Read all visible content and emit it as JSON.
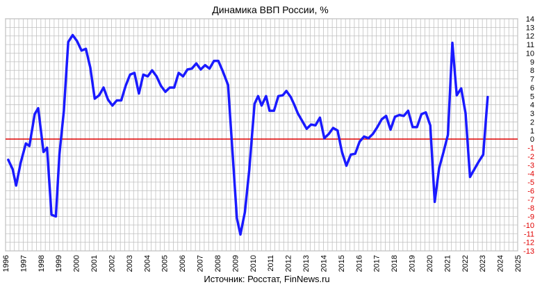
{
  "chart_data": {
    "type": "line",
    "title": "Динамика ВВП России, %",
    "source": "Источник: Росстат, FinNews.ru",
    "xlabel": "",
    "ylabel": "",
    "xlim": [
      1996,
      2025
    ],
    "ylim": [
      -13,
      14
    ],
    "x_ticks": [
      "1996",
      "1997",
      "1998",
      "1999",
      "2000",
      "2001",
      "2002",
      "2003",
      "2004",
      "2005",
      "2006",
      "2007",
      "2008",
      "2009",
      "2010",
      "2011",
      "2012",
      "2013",
      "2014",
      "2015",
      "2016",
      "2017",
      "2018",
      "2019",
      "2020",
      "2021",
      "2022",
      "2023",
      "2024",
      "2025"
    ],
    "y_ticks": [
      14,
      13,
      12,
      11,
      10,
      9,
      8,
      7,
      6,
      5,
      4,
      3,
      2,
      1,
      0,
      -1,
      -2,
      -3,
      -4,
      -5,
      -6,
      -7,
      -8,
      -9,
      -10,
      -11,
      -12,
      -13
    ],
    "grid": true,
    "colors": {
      "series": "#1a1aff",
      "zero_line": "#e00000",
      "negative_tick": "#e00000",
      "positive_tick": "#000000",
      "grid": "#c0c0c0"
    },
    "series": [
      {
        "name": "",
        "points": [
          [
            1996.15,
            -2.4
          ],
          [
            1996.4,
            -3.5
          ],
          [
            1996.6,
            -5.4
          ],
          [
            1996.85,
            -2.8
          ],
          [
            1997.15,
            -0.5
          ],
          [
            1997.35,
            -0.8
          ],
          [
            1997.65,
            2.9
          ],
          [
            1997.85,
            3.6
          ],
          [
            1998.15,
            -1.5
          ],
          [
            1998.35,
            -1.0
          ],
          [
            1998.6,
            -8.8
          ],
          [
            1998.85,
            -9.0
          ],
          [
            1999.05,
            -1.8
          ],
          [
            1999.3,
            3.3
          ],
          [
            1999.55,
            11.3
          ],
          [
            1999.8,
            12.1
          ],
          [
            2000.05,
            11.4
          ],
          [
            2000.3,
            10.3
          ],
          [
            2000.55,
            10.5
          ],
          [
            2000.8,
            8.3
          ],
          [
            2001.05,
            4.7
          ],
          [
            2001.3,
            5.1
          ],
          [
            2001.55,
            6.0
          ],
          [
            2001.8,
            4.6
          ],
          [
            2002.05,
            3.9
          ],
          [
            2002.3,
            4.5
          ],
          [
            2002.55,
            4.5
          ],
          [
            2002.8,
            6.2
          ],
          [
            2003.05,
            7.5
          ],
          [
            2003.3,
            7.7
          ],
          [
            2003.55,
            5.3
          ],
          [
            2003.8,
            7.5
          ],
          [
            2004.05,
            7.3
          ],
          [
            2004.3,
            8.0
          ],
          [
            2004.55,
            7.3
          ],
          [
            2004.8,
            6.2
          ],
          [
            2005.05,
            5.5
          ],
          [
            2005.3,
            6.0
          ],
          [
            2005.55,
            6.0
          ],
          [
            2005.8,
            7.7
          ],
          [
            2006.05,
            7.3
          ],
          [
            2006.3,
            8.1
          ],
          [
            2006.55,
            8.2
          ],
          [
            2006.8,
            8.8
          ],
          [
            2007.05,
            8.1
          ],
          [
            2007.3,
            8.6
          ],
          [
            2007.55,
            8.2
          ],
          [
            2007.8,
            9.1
          ],
          [
            2008.05,
            9.1
          ],
          [
            2008.3,
            7.9
          ],
          [
            2008.6,
            6.3
          ],
          [
            2009.1,
            -9.2
          ],
          [
            2009.3,
            -11.1
          ],
          [
            2009.55,
            -8.5
          ],
          [
            2009.8,
            -3.6
          ],
          [
            2010.1,
            4.1
          ],
          [
            2010.3,
            5.0
          ],
          [
            2010.5,
            3.9
          ],
          [
            2010.75,
            5.0
          ],
          [
            2010.95,
            3.3
          ],
          [
            2011.2,
            3.3
          ],
          [
            2011.45,
            5.0
          ],
          [
            2011.7,
            5.1
          ],
          [
            2011.9,
            5.6
          ],
          [
            2012.15,
            4.9
          ],
          [
            2012.35,
            4.0
          ],
          [
            2012.55,
            3.0
          ],
          [
            2012.8,
            2.1
          ],
          [
            2013.05,
            1.2
          ],
          [
            2013.3,
            1.7
          ],
          [
            2013.55,
            1.6
          ],
          [
            2013.8,
            2.5
          ],
          [
            2014.05,
            0.1
          ],
          [
            2014.3,
            0.6
          ],
          [
            2014.55,
            1.3
          ],
          [
            2014.8,
            1.0
          ],
          [
            2015.05,
            -1.5
          ],
          [
            2015.3,
            -3.1
          ],
          [
            2015.55,
            -1.8
          ],
          [
            2015.8,
            -1.7
          ],
          [
            2016.05,
            -0.3
          ],
          [
            2016.3,
            0.3
          ],
          [
            2016.55,
            0.1
          ],
          [
            2016.8,
            0.6
          ],
          [
            2017.05,
            1.4
          ],
          [
            2017.3,
            2.3
          ],
          [
            2017.55,
            2.7
          ],
          [
            2017.8,
            1.1
          ],
          [
            2018.05,
            2.6
          ],
          [
            2018.3,
            2.8
          ],
          [
            2018.55,
            2.7
          ],
          [
            2018.8,
            3.3
          ],
          [
            2019.05,
            1.4
          ],
          [
            2019.3,
            1.4
          ],
          [
            2019.55,
            2.9
          ],
          [
            2019.8,
            3.1
          ],
          [
            2020.05,
            1.6
          ],
          [
            2020.3,
            -7.3
          ],
          [
            2020.55,
            -3.4
          ],
          [
            2020.8,
            -1.5
          ],
          [
            2021.05,
            0.5
          ],
          [
            2021.3,
            11.2
          ],
          [
            2021.55,
            5.1
          ],
          [
            2021.8,
            5.9
          ],
          [
            2022.05,
            3.0
          ],
          [
            2022.3,
            -4.4
          ],
          [
            2022.55,
            -3.5
          ],
          [
            2022.8,
            -2.6
          ],
          [
            2023.05,
            -1.8
          ],
          [
            2023.3,
            4.9
          ]
        ]
      }
    ]
  }
}
